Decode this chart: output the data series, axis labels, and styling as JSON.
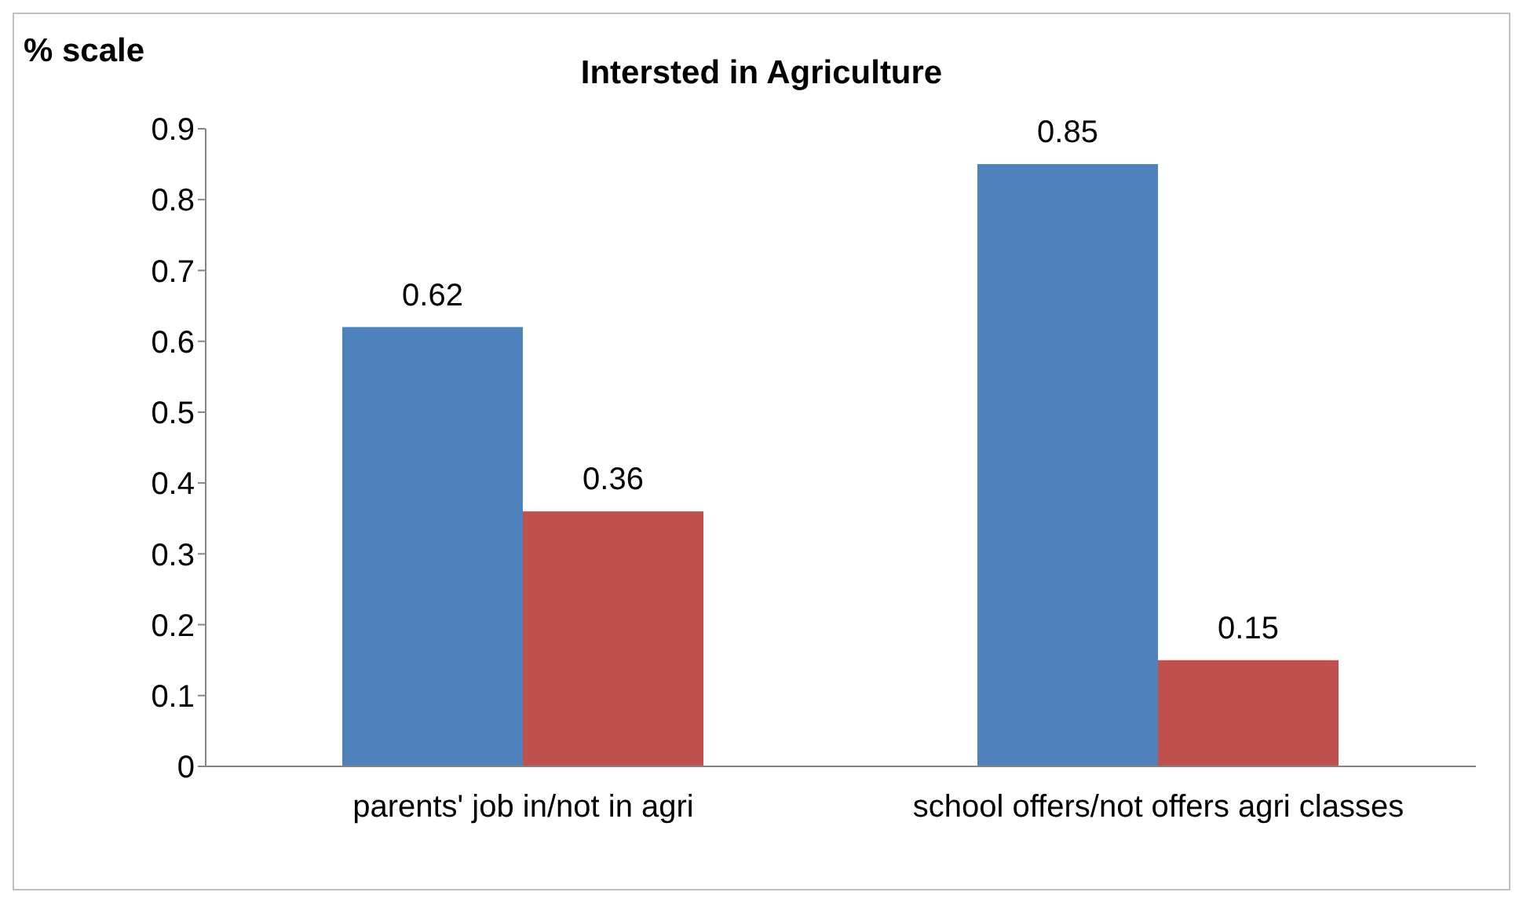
{
  "chart_data": {
    "type": "bar",
    "title": "Intersted in Agriculture",
    "ylabel": "% scale",
    "categories": [
      "parents' job in/not in agri",
      "school offers/not offers agri classes"
    ],
    "series": [
      {
        "color": "#4f81bd",
        "values": [
          0.62,
          0.85
        ]
      },
      {
        "color": "#c0504d",
        "values": [
          0.36,
          0.15
        ]
      }
    ],
    "ylim": [
      0,
      0.9
    ],
    "yticks": [
      0,
      0.1,
      0.2,
      0.3,
      0.4,
      0.5,
      0.6,
      0.7,
      0.8,
      0.9
    ],
    "grid": false,
    "legend": false,
    "data_labels": true
  }
}
